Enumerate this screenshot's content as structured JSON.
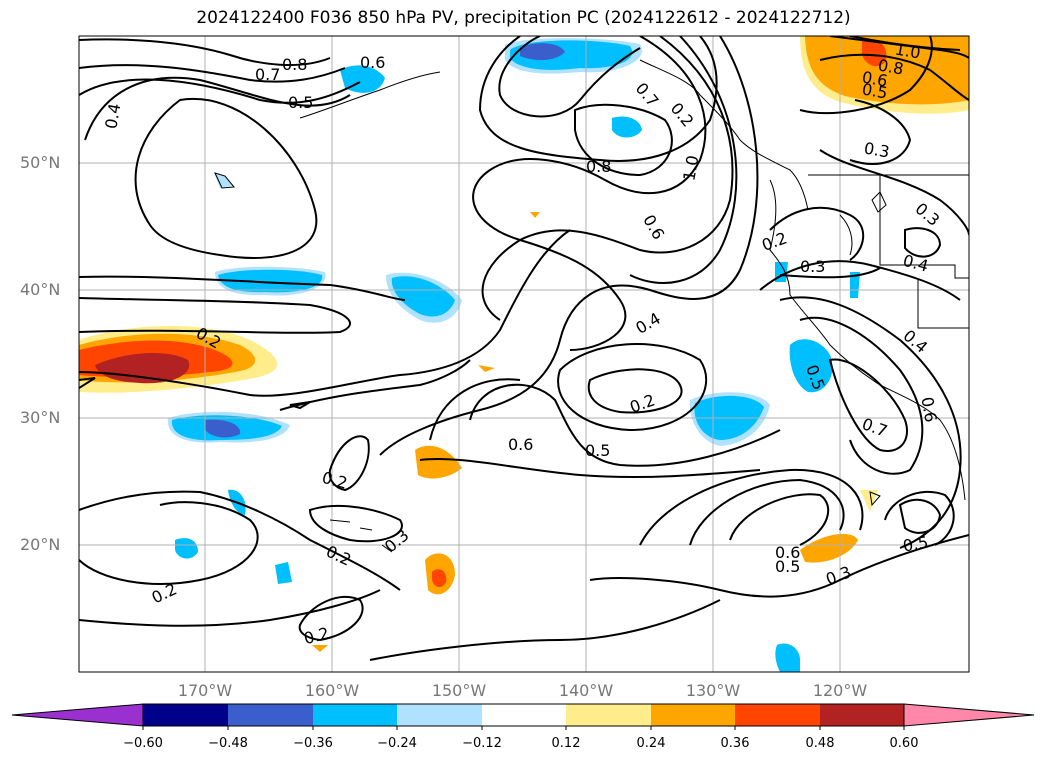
{
  "title": "2024122400 F036 850 hPa PV, precipitation PC (2024122612 - 2024122712)",
  "map": {
    "lat_labels": [
      "50°N",
      "40°N",
      "30°N",
      "20°N"
    ],
    "lon_labels": [
      "170°W",
      "160°W",
      "150°W",
      "140°W",
      "130°W",
      "120°W"
    ],
    "contour_labels": [
      "0.8",
      "0.7",
      "0.6",
      "0.5",
      "0.4",
      "0.8",
      "1.0",
      "0.6",
      "0.4",
      "0.2",
      "0.6",
      "0.5",
      "0.2",
      "0.2",
      "0.3",
      "0.2",
      "0.2",
      "0.2",
      "0.2",
      "0.3",
      "0.4",
      "0.4",
      "0.5",
      "0.7",
      "0.6",
      "0.6",
      "0.5",
      "0.3",
      "1.0",
      "0.8",
      "0.6",
      "0.5",
      "0.3",
      "0.3",
      "0.2",
      "0.7",
      "0.5"
    ]
  },
  "colorbar": {
    "ticks": [
      "−0.60",
      "−0.48",
      "−0.36",
      "−0.24",
      "−0.12",
      "0.12",
      "0.24",
      "0.36",
      "0.48",
      "0.60"
    ],
    "colors": [
      "#9b30d0",
      "#00008b",
      "#3a5fcd",
      "#00bfff",
      "#b0e2ff",
      "#ffffff",
      "#ffec8b",
      "#ffa500",
      "#ff4500",
      "#b22222",
      "#ff88aa"
    ]
  }
}
